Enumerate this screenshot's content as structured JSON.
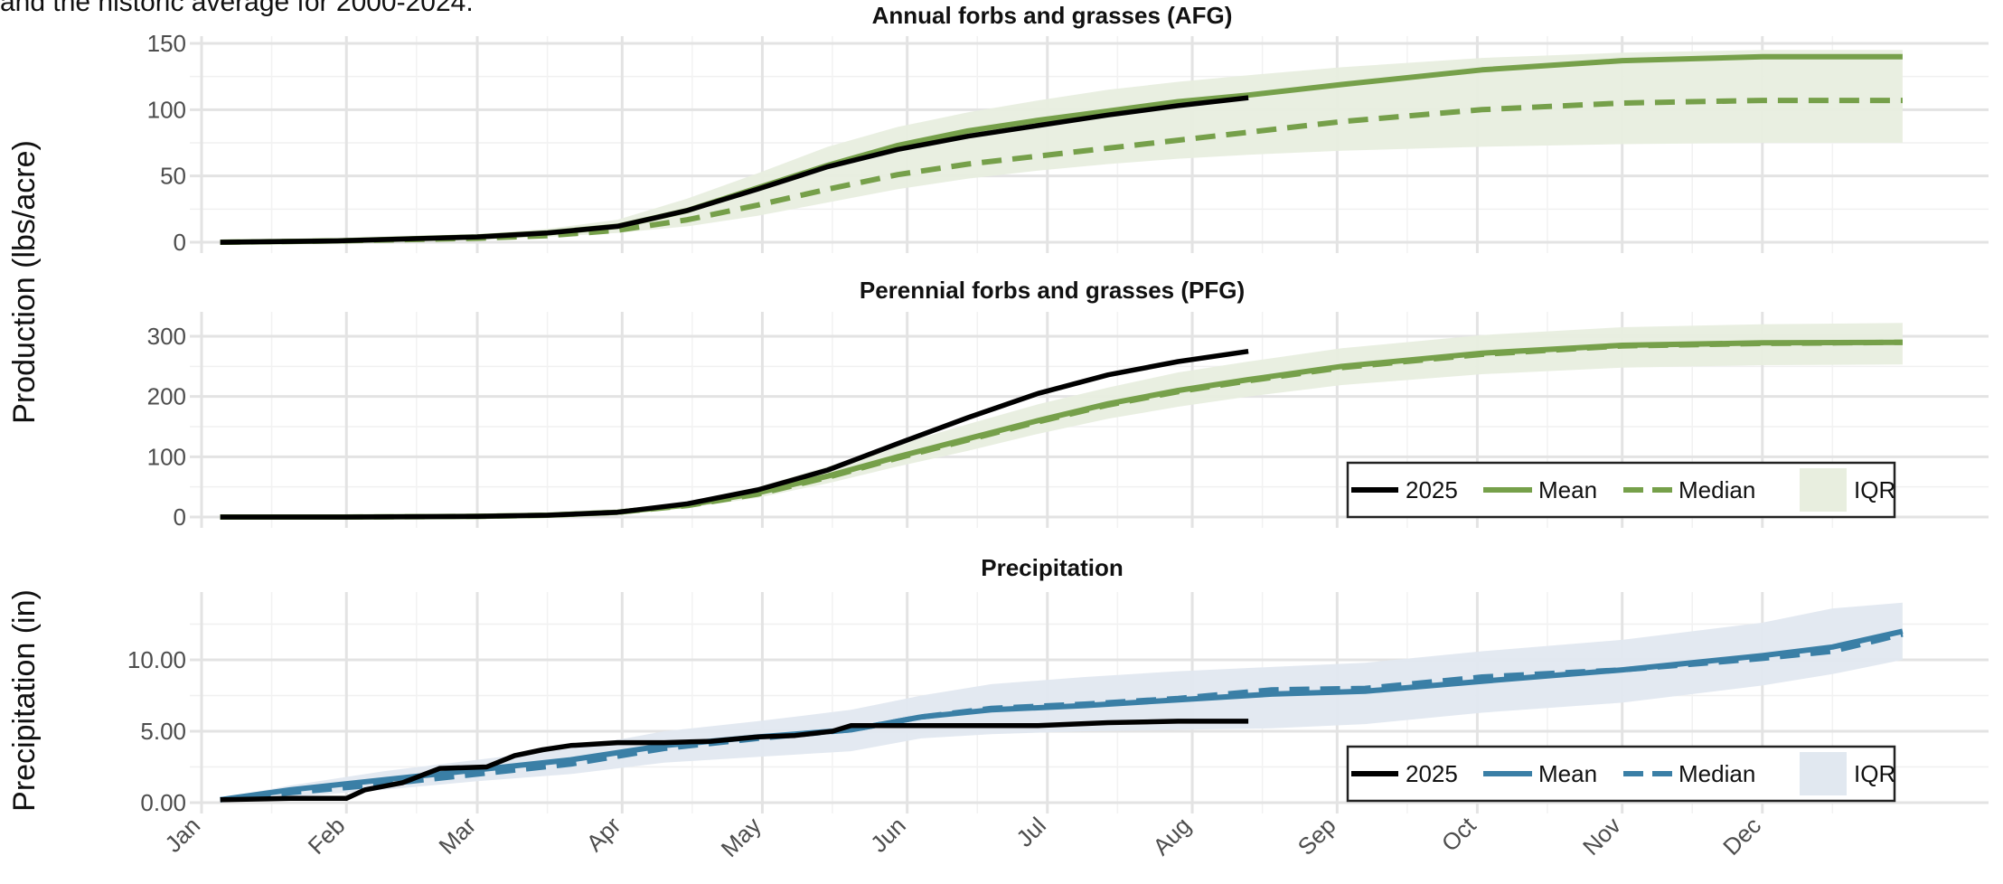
{
  "caption_fragment": "and the historic average for 2000-2024.",
  "colors": {
    "green": "#76a04a",
    "green_band": "#e8eedf",
    "blue": "#3a7fa6",
    "blue_band": "#e1e8f0",
    "black": "#000000",
    "grid": "#e3e3e3"
  },
  "chart_data": [
    {
      "type": "line",
      "title": "Annual forbs and grasses (AFG)",
      "ylabel": "Production (lbs/acre)",
      "ylim": [
        0,
        150
      ],
      "yticks": [
        0,
        50,
        100,
        150
      ],
      "ytick_labels": [
        "0",
        "50",
        "100",
        "150"
      ],
      "x_unit": "day of year",
      "series": [
        {
          "name": "2025",
          "x": [
            5,
            30,
            60,
            75,
            90,
            105,
            120,
            135,
            150,
            165,
            180,
            195,
            210,
            225
          ],
          "y": [
            0,
            1,
            4,
            7,
            12,
            24,
            40,
            57,
            70,
            80,
            88,
            96,
            103,
            109
          ]
        },
        {
          "name": "Mean",
          "x": [
            5,
            30,
            60,
            75,
            90,
            105,
            120,
            135,
            150,
            165,
            180,
            195,
            210,
            225,
            245,
            275,
            305,
            335,
            365
          ],
          "y": [
            0,
            1,
            4,
            7,
            12,
            24,
            41,
            58,
            73,
            84,
            92,
            99,
            106,
            111,
            119,
            130,
            137,
            140,
            140
          ]
        },
        {
          "name": "Median",
          "x": [
            5,
            30,
            60,
            75,
            90,
            105,
            120,
            135,
            150,
            165,
            180,
            195,
            210,
            225,
            245,
            275,
            305,
            335,
            365
          ],
          "y": [
            0,
            1,
            3,
            5,
            9,
            17,
            28,
            40,
            51,
            59,
            65,
            71,
            77,
            83,
            91,
            100,
            105,
            107,
            107
          ]
        },
        {
          "name": "IQR",
          "x": [
            5,
            30,
            60,
            75,
            90,
            105,
            120,
            135,
            150,
            165,
            180,
            195,
            210,
            225,
            245,
            275,
            305,
            335,
            365
          ],
          "low": [
            0,
            0,
            2,
            4,
            7,
            12,
            20,
            30,
            40,
            48,
            54,
            59,
            63,
            66,
            69,
            72,
            74,
            75,
            75
          ],
          "high": [
            0,
            2,
            6,
            10,
            17,
            33,
            52,
            72,
            87,
            98,
            107,
            115,
            121,
            126,
            132,
            139,
            143,
            145,
            145
          ]
        }
      ]
    },
    {
      "type": "line",
      "title": "Perennial forbs and grasses (PFG)",
      "ylabel": "Production (lbs/acre)",
      "ylim": [
        0,
        330
      ],
      "yticks": [
        0,
        100,
        200,
        300
      ],
      "ytick_labels": [
        "0",
        "100",
        "200",
        "300"
      ],
      "x_unit": "day of year",
      "series": [
        {
          "name": "2025",
          "x": [
            5,
            30,
            60,
            75,
            90,
            105,
            120,
            135,
            150,
            165,
            180,
            195,
            210,
            225
          ],
          "y": [
            0,
            0,
            1,
            3,
            8,
            22,
            45,
            78,
            122,
            165,
            205,
            236,
            258,
            275
          ]
        },
        {
          "name": "Mean",
          "x": [
            5,
            30,
            60,
            75,
            90,
            105,
            120,
            135,
            150,
            165,
            180,
            195,
            210,
            225,
            245,
            275,
            305,
            335,
            365
          ],
          "y": [
            0,
            0,
            1,
            3,
            8,
            20,
            40,
            68,
            100,
            130,
            160,
            188,
            210,
            228,
            250,
            272,
            285,
            289,
            290
          ]
        },
        {
          "name": "Median",
          "x": [
            5,
            30,
            60,
            75,
            90,
            105,
            120,
            135,
            150,
            165,
            180,
            195,
            210,
            225,
            245,
            275,
            305,
            335,
            365
          ],
          "y": [
            0,
            0,
            1,
            3,
            8,
            19,
            38,
            66,
            98,
            128,
            158,
            186,
            208,
            226,
            248,
            270,
            284,
            288,
            290
          ]
        },
        {
          "name": "IQR",
          "x": [
            5,
            30,
            60,
            75,
            90,
            105,
            120,
            135,
            150,
            165,
            180,
            195,
            210,
            225,
            245,
            275,
            305,
            335,
            365
          ],
          "low": [
            0,
            0,
            0,
            2,
            6,
            15,
            32,
            56,
            84,
            110,
            138,
            163,
            183,
            200,
            219,
            237,
            248,
            252,
            253
          ],
          "high": [
            0,
            1,
            2,
            5,
            11,
            26,
            50,
            84,
            120,
            154,
            187,
            215,
            240,
            258,
            280,
            302,
            315,
            320,
            322
          ]
        }
      ]
    },
    {
      "type": "line",
      "title": "Precipitation",
      "ylabel": "Precipitation (in)",
      "ylim": [
        -0.5,
        14.5
      ],
      "yticks": [
        0,
        5,
        10
      ],
      "ytick_labels": [
        "0.00",
        "5.00",
        "10.00"
      ],
      "x_unit": "day of year",
      "series": [
        {
          "name": "2025",
          "x": [
            5,
            20,
            32,
            36,
            44,
            52,
            62,
            68,
            74,
            80,
            90,
            100,
            110,
            120,
            128,
            136,
            140,
            150,
            165,
            180,
            195,
            210,
            225
          ],
          "y": [
            0.2,
            0.3,
            0.3,
            0.9,
            1.4,
            2.4,
            2.5,
            3.3,
            3.7,
            4.0,
            4.2,
            4.2,
            4.3,
            4.6,
            4.7,
            5.0,
            5.4,
            5.4,
            5.4,
            5.4,
            5.6,
            5.7,
            5.7
          ]
        },
        {
          "name": "Mean",
          "x": [
            5,
            20,
            40,
            60,
            80,
            100,
            120,
            140,
            155,
            170,
            190,
            210,
            230,
            250,
            275,
            305,
            335,
            350,
            365
          ],
          "y": [
            0.2,
            0.9,
            1.6,
            2.3,
            3.0,
            4.0,
            4.6,
            5.1,
            6.0,
            6.5,
            6.8,
            7.2,
            7.6,
            7.8,
            8.5,
            9.3,
            10.3,
            10.9,
            12.0
          ]
        },
        {
          "name": "Median",
          "x": [
            5,
            20,
            40,
            60,
            80,
            100,
            120,
            140,
            155,
            170,
            190,
            210,
            230,
            250,
            275,
            305,
            335,
            350,
            365
          ],
          "y": [
            0.2,
            0.7,
            1.3,
            2.0,
            2.7,
            3.8,
            4.5,
            5.1,
            6.0,
            6.6,
            6.9,
            7.3,
            7.9,
            8.0,
            8.8,
            9.3,
            10.1,
            10.6,
            11.8
          ]
        },
        {
          "name": "IQR",
          "x": [
            5,
            20,
            40,
            60,
            80,
            100,
            120,
            140,
            155,
            170,
            190,
            210,
            230,
            250,
            275,
            305,
            335,
            350,
            365
          ],
          "low": [
            0.1,
            0.4,
            0.9,
            1.5,
            2.0,
            2.8,
            3.2,
            3.6,
            4.5,
            4.8,
            5.0,
            5.1,
            5.2,
            5.5,
            6.3,
            7.0,
            8.2,
            9.0,
            10.0
          ],
          "high": [
            0.3,
            1.2,
            2.2,
            3.0,
            3.8,
            5.0,
            5.7,
            6.5,
            7.5,
            8.3,
            8.8,
            9.2,
            9.5,
            9.8,
            10.6,
            11.4,
            12.6,
            13.6,
            14.0
          ]
        }
      ]
    }
  ],
  "x_axis": {
    "month_labels": [
      "Jan",
      "Feb",
      "Mar",
      "Apr",
      "May",
      "Jun",
      "Jul",
      "Aug",
      "Sep",
      "Oct",
      "Nov",
      "Dec"
    ],
    "month_start_days": [
      1,
      32,
      60,
      91,
      121,
      152,
      182,
      213,
      244,
      274,
      305,
      335
    ]
  },
  "shared_ylabel": "Production (lbs/acre)",
  "legends": [
    {
      "panel": "production",
      "items": [
        "2025",
        "Mean",
        "Median",
        "IQR"
      ]
    },
    {
      "panel": "precipitation",
      "items": [
        "2025",
        "Mean",
        "Median",
        "IQR"
      ]
    }
  ]
}
